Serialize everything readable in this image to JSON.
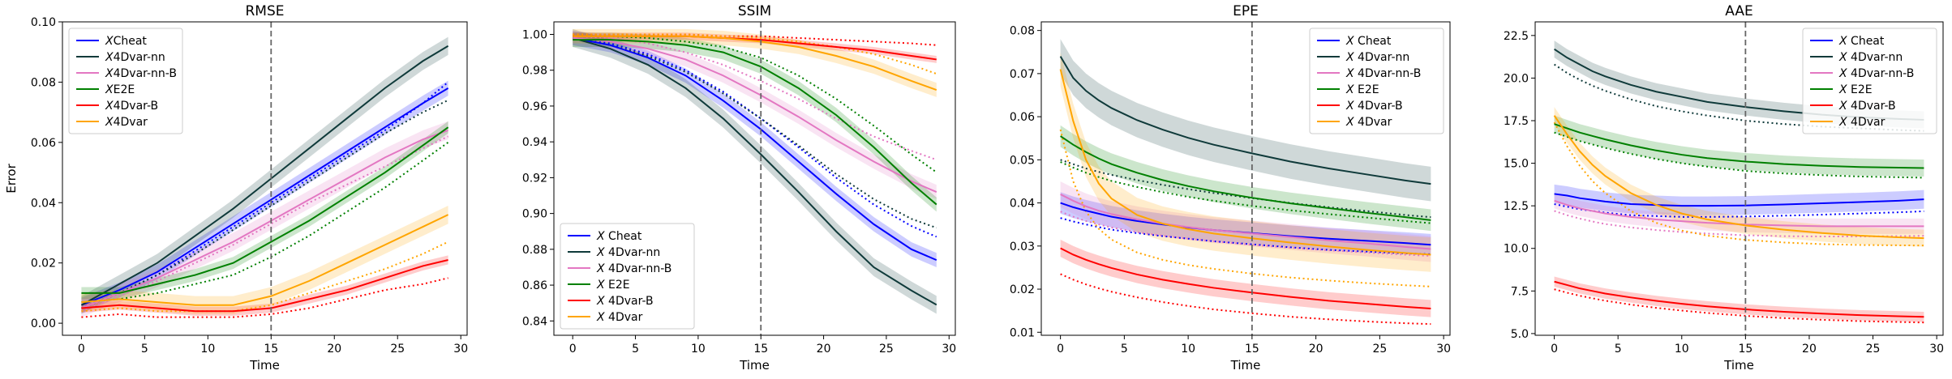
{
  "colors": {
    "cheat": "#0000ff",
    "nn": "#0f3a3a",
    "nnb": "#e377c2",
    "e2e": "#008000",
    "b": "#ff0000",
    "fourdvar": "#ffa500"
  },
  "chart_data": [
    {
      "type": "line",
      "title": "RMSE",
      "xlabel": "Time",
      "ylabel": "Error",
      "xlim": [
        -1.5,
        30.5
      ],
      "ylim": [
        -0.004,
        0.1
      ],
      "xticks": [
        0,
        5,
        10,
        15,
        20,
        25,
        30
      ],
      "yticks": [
        0.0,
        0.02,
        0.04,
        0.06,
        0.08,
        0.1
      ],
      "ytick_labels": [
        "0.00",
        "0.02",
        "0.04",
        "0.06",
        "0.08",
        "0.10"
      ],
      "vline": 15,
      "legend_loc": "upper-left",
      "x": [
        0,
        3,
        6,
        9,
        12,
        15,
        18,
        21,
        24,
        27,
        29
      ],
      "series": [
        {
          "name": "XCheat",
          "color_key": "cheat",
          "values": [
            0.006,
            0.011,
            0.017,
            0.025,
            0.033,
            0.041,
            0.049,
            0.057,
            0.065,
            0.073,
            0.078
          ],
          "band": 0.0025,
          "dotted": [
            0.005,
            0.01,
            0.016,
            0.024,
            0.032,
            0.04,
            0.048,
            0.056,
            0.064,
            0.073,
            0.08
          ]
        },
        {
          "name": "X4Dvar-nn",
          "color_key": "nn",
          "values": [
            0.006,
            0.013,
            0.02,
            0.029,
            0.038,
            0.048,
            0.058,
            0.068,
            0.078,
            0.087,
            0.092
          ],
          "band": 0.003,
          "dotted": [
            0.005,
            0.01,
            0.016,
            0.023,
            0.031,
            0.039,
            0.047,
            0.055,
            0.063,
            0.07,
            0.074
          ]
        },
        {
          "name": "X4Dvar-nn-B",
          "color_key": "nnb",
          "values": [
            0.005,
            0.01,
            0.015,
            0.021,
            0.027,
            0.034,
            0.041,
            0.048,
            0.055,
            0.061,
            0.064
          ],
          "band": 0.003,
          "dotted": [
            0.004,
            0.009,
            0.014,
            0.02,
            0.026,
            0.033,
            0.04,
            0.046,
            0.052,
            0.058,
            0.062
          ]
        },
        {
          "name": "XE2E",
          "color_key": "e2e",
          "values": [
            0.01,
            0.01,
            0.013,
            0.016,
            0.02,
            0.027,
            0.034,
            0.042,
            0.05,
            0.059,
            0.065
          ],
          "band": 0.002,
          "dotted": [
            0.007,
            0.008,
            0.01,
            0.013,
            0.016,
            0.022,
            0.029,
            0.037,
            0.045,
            0.054,
            0.06
          ]
        },
        {
          "name": "X4Dvar-B",
          "color_key": "b",
          "values": [
            0.005,
            0.006,
            0.005,
            0.004,
            0.004,
            0.005,
            0.008,
            0.011,
            0.015,
            0.019,
            0.021
          ],
          "band": 0.0015,
          "dotted": [
            0.002,
            0.003,
            0.002,
            0.002,
            0.002,
            0.003,
            0.005,
            0.008,
            0.011,
            0.013,
            0.015
          ]
        },
        {
          "name": "X4Dvar",
          "color_key": "fourdvar",
          "values": [
            0.007,
            0.008,
            0.007,
            0.006,
            0.006,
            0.009,
            0.014,
            0.02,
            0.026,
            0.032,
            0.036
          ],
          "band": 0.003,
          "dotted": [
            0.004,
            0.005,
            0.004,
            0.004,
            0.004,
            0.006,
            0.01,
            0.014,
            0.018,
            0.023,
            0.027
          ]
        }
      ]
    },
    {
      "type": "line",
      "title": "SSIM",
      "xlabel": "Time",
      "ylabel": "",
      "xlim": [
        -1.5,
        30.5
      ],
      "ylim": [
        0.832,
        1.007
      ],
      "xticks": [
        0,
        5,
        10,
        15,
        20,
        25,
        30
      ],
      "yticks": [
        0.84,
        0.86,
        0.88,
        0.9,
        0.92,
        0.94,
        0.96,
        0.98,
        1.0
      ],
      "ytick_labels": [
        "0.84",
        "0.86",
        "0.88",
        "0.90",
        "0.92",
        "0.94",
        "0.96",
        "0.98",
        "1.00"
      ],
      "vline": 15,
      "legend_loc": "lower-left",
      "x": [
        0,
        3,
        6,
        9,
        12,
        15,
        18,
        21,
        24,
        27,
        29
      ],
      "series": [
        {
          "name": "X Cheat",
          "color_key": "cheat",
          "values": [
            0.998,
            0.994,
            0.987,
            0.977,
            0.963,
            0.947,
            0.929,
            0.911,
            0.894,
            0.88,
            0.874
          ],
          "band": 0.004,
          "dotted": [
            0.998,
            0.995,
            0.989,
            0.98,
            0.968,
            0.953,
            0.937,
            0.92,
            0.905,
            0.893,
            0.887
          ]
        },
        {
          "name": "X 4Dvar-nn",
          "color_key": "nn",
          "values": [
            0.998,
            0.992,
            0.983,
            0.97,
            0.953,
            0.933,
            0.912,
            0.89,
            0.87,
            0.857,
            0.849
          ],
          "band": 0.005,
          "dotted": [
            0.998,
            0.994,
            0.988,
            0.979,
            0.967,
            0.953,
            0.938,
            0.922,
            0.908,
            0.897,
            0.892
          ]
        },
        {
          "name": "X 4Dvar-nn-B",
          "color_key": "nnb",
          "values": [
            0.998,
            0.996,
            0.992,
            0.986,
            0.977,
            0.966,
            0.954,
            0.941,
            0.929,
            0.918,
            0.912
          ],
          "band": 0.004,
          "dotted": [
            0.999,
            0.998,
            0.995,
            0.99,
            0.983,
            0.974,
            0.964,
            0.953,
            0.943,
            0.935,
            0.93
          ]
        },
        {
          "name": "X E2E",
          "color_key": "e2e",
          "values": [
            0.997,
            0.997,
            0.996,
            0.994,
            0.99,
            0.982,
            0.97,
            0.955,
            0.937,
            0.917,
            0.905
          ],
          "band": 0.004,
          "dotted": [
            0.999,
            0.999,
            0.998,
            0.996,
            0.993,
            0.987,
            0.977,
            0.964,
            0.949,
            0.933,
            0.923
          ]
        },
        {
          "name": "X 4Dvar-B",
          "color_key": "b",
          "values": [
            0.999,
            0.999,
            0.999,
            0.999,
            0.998,
            0.997,
            0.995,
            0.993,
            0.991,
            0.988,
            0.986
          ],
          "band": 0.002,
          "dotted": [
            1.0,
            1.0,
            1.0,
            1.0,
            0.999,
            0.999,
            0.998,
            0.997,
            0.996,
            0.995,
            0.994
          ]
        },
        {
          "name": "X 4Dvar",
          "color_key": "fourdvar",
          "values": [
            0.999,
            0.999,
            0.999,
            0.999,
            0.998,
            0.996,
            0.993,
            0.988,
            0.982,
            0.974,
            0.969
          ],
          "band": 0.004,
          "dotted": [
            1.0,
            1.0,
            1.0,
            1.0,
            0.999,
            0.998,
            0.996,
            0.993,
            0.989,
            0.983,
            0.978
          ]
        }
      ]
    },
    {
      "type": "line",
      "title": "EPE",
      "xlabel": "Time",
      "ylabel": "",
      "xlim": [
        -1.5,
        30.5
      ],
      "ylim": [
        0.0093,
        0.082
      ],
      "xticks": [
        0,
        5,
        10,
        15,
        20,
        25,
        30
      ],
      "yticks": [
        0.01,
        0.02,
        0.03,
        0.04,
        0.05,
        0.06,
        0.07,
        0.08
      ],
      "ytick_labels": [
        "0.01",
        "0.02",
        "0.03",
        "0.04",
        "0.05",
        "0.06",
        "0.07",
        "0.08"
      ],
      "vline": 15,
      "legend_loc": "upper-right",
      "x": [
        0,
        1,
        2,
        3,
        4,
        6,
        8,
        10,
        12,
        15,
        18,
        21,
        24,
        27,
        29
      ],
      "series": [
        {
          "name": "X Cheat",
          "color_key": "cheat",
          "values": [
            0.04,
            0.039,
            0.0382,
            0.0375,
            0.0368,
            0.0358,
            0.035,
            0.0343,
            0.0337,
            0.033,
            0.0323,
            0.0317,
            0.0312,
            0.0307,
            0.0303
          ],
          "band": 0.0025,
          "dotted": [
            0.0365,
            0.0357,
            0.035,
            0.0344,
            0.0338,
            0.033,
            0.0323,
            0.0317,
            0.0311,
            0.0304,
            0.0297,
            0.0291,
            0.0287,
            0.0283,
            0.0281
          ]
        },
        {
          "name": "X 4Dvar-nn",
          "color_key": "nn",
          "values": [
            0.074,
            0.069,
            0.066,
            0.0638,
            0.062,
            0.0592,
            0.057,
            0.0551,
            0.0535,
            0.0515,
            0.0496,
            0.048,
            0.0466,
            0.0452,
            0.0444
          ],
          "band": 0.004,
          "dotted": [
            0.05,
            0.049,
            0.048,
            0.0472,
            0.0465,
            0.0453,
            0.0442,
            0.0432,
            0.0423,
            0.0411,
            0.04,
            0.039,
            0.0381,
            0.0372,
            0.0367
          ]
        },
        {
          "name": "X 4Dvar-nn-B",
          "color_key": "nnb",
          "values": [
            0.042,
            0.0405,
            0.0392,
            0.0382,
            0.0374,
            0.0362,
            0.0352,
            0.0344,
            0.0337,
            0.0329,
            0.0321,
            0.0313,
            0.0306,
            0.0298,
            0.0293
          ],
          "band": 0.003,
          "dotted": [
            0.038,
            0.0368,
            0.0358,
            0.035,
            0.0343,
            0.0332,
            0.0324,
            0.0317,
            0.0311,
            0.0303,
            0.0296,
            0.029,
            0.0285,
            0.028,
            0.0277
          ]
        },
        {
          "name": "X E2E",
          "color_key": "e2e",
          "values": [
            0.0555,
            0.0535,
            0.0518,
            0.0503,
            0.049,
            0.047,
            0.0453,
            0.0439,
            0.0427,
            0.0412,
            0.0399,
            0.0388,
            0.0377,
            0.0367,
            0.036
          ],
          "band": 0.0025,
          "dotted": [
            0.0495,
            0.0482,
            0.047,
            0.046,
            0.0451,
            0.0437,
            0.0425,
            0.0414,
            0.0405,
            0.0393,
            0.0383,
            0.0374,
            0.0366,
            0.0358,
            0.0353
          ]
        },
        {
          "name": "X 4Dvar-B",
          "color_key": "b",
          "values": [
            0.0295,
            0.028,
            0.0268,
            0.0258,
            0.0249,
            0.0234,
            0.0222,
            0.0212,
            0.0203,
            0.0192,
            0.0182,
            0.0173,
            0.0166,
            0.0159,
            0.0155
          ],
          "band": 0.002,
          "dotted": [
            0.0235,
            0.0222,
            0.0211,
            0.0202,
            0.0194,
            0.0181,
            0.017,
            0.0161,
            0.0153,
            0.0144,
            0.0136,
            0.013,
            0.0125,
            0.0121,
            0.0119
          ]
        },
        {
          "name": "X 4Dvar",
          "color_key": "fourdvar",
          "values": [
            0.071,
            0.059,
            0.05,
            0.0445,
            0.041,
            0.0372,
            0.0352,
            0.0339,
            0.0329,
            0.0318,
            0.0308,
            0.0299,
            0.0291,
            0.0284,
            0.028
          ],
          "band": 0.004,
          "dotted": [
            0.057,
            0.045,
            0.038,
            0.034,
            0.0315,
            0.0285,
            0.0268,
            0.0256,
            0.0247,
            0.0236,
            0.0227,
            0.022,
            0.0214,
            0.0209,
            0.0206
          ]
        }
      ]
    },
    {
      "type": "line",
      "title": "AAE",
      "xlabel": "Time",
      "ylabel": "",
      "xlim": [
        -1.5,
        30.5
      ],
      "ylim": [
        4.9,
        23.3
      ],
      "xticks": [
        0,
        5,
        10,
        15,
        20,
        25,
        30
      ],
      "yticks": [
        5.0,
        7.5,
        10.0,
        12.5,
        15.0,
        17.5,
        20.0,
        22.5
      ],
      "ytick_labels": [
        "5.0",
        "7.5",
        "10.0",
        "12.5",
        "15.0",
        "17.5",
        "20.0",
        "22.5"
      ],
      "vline": 15,
      "legend_loc": "upper-right",
      "x": [
        0,
        1,
        2,
        3,
        4,
        6,
        8,
        10,
        12,
        15,
        18,
        21,
        24,
        27,
        29
      ],
      "series": [
        {
          "name": "X Cheat",
          "color_key": "cheat",
          "values": [
            13.2,
            13.1,
            12.95,
            12.85,
            12.75,
            12.6,
            12.55,
            12.5,
            12.5,
            12.52,
            12.58,
            12.65,
            12.72,
            12.8,
            12.88
          ],
          "band": 0.55,
          "dotted": [
            12.6,
            12.45,
            12.3,
            12.2,
            12.1,
            11.95,
            11.9,
            11.85,
            11.85,
            11.87,
            11.92,
            11.98,
            12.05,
            12.12,
            12.18
          ]
        },
        {
          "name": "X 4Dvar-nn",
          "color_key": "nn",
          "values": [
            21.7,
            21.2,
            20.8,
            20.4,
            20.1,
            19.6,
            19.2,
            18.9,
            18.6,
            18.3,
            18.05,
            17.85,
            17.7,
            17.6,
            17.55
          ],
          "band": 0.5,
          "dotted": [
            20.8,
            20.3,
            19.9,
            19.55,
            19.25,
            18.75,
            18.35,
            18.05,
            17.8,
            17.5,
            17.3,
            17.15,
            17.05,
            16.95,
            16.9
          ]
        },
        {
          "name": "X 4Dvar-nn-B",
          "color_key": "nnb",
          "values": [
            12.8,
            12.55,
            12.35,
            12.2,
            12.05,
            11.85,
            11.7,
            11.6,
            11.5,
            11.4,
            11.35,
            11.3,
            11.3,
            11.3,
            11.3
          ],
          "band": 0.45,
          "dotted": [
            12.2,
            11.95,
            11.75,
            11.58,
            11.43,
            11.23,
            11.08,
            10.96,
            10.87,
            10.77,
            10.72,
            10.7,
            10.7,
            10.72,
            10.74
          ]
        },
        {
          "name": "X E2E",
          "color_key": "e2e",
          "values": [
            17.3,
            17.05,
            16.8,
            16.6,
            16.4,
            16.05,
            15.75,
            15.5,
            15.3,
            15.1,
            14.95,
            14.85,
            14.78,
            14.74,
            14.72
          ],
          "band": 0.5,
          "dotted": [
            16.8,
            16.55,
            16.3,
            16.1,
            15.9,
            15.55,
            15.25,
            15.0,
            14.8,
            14.55,
            14.4,
            14.3,
            14.22,
            14.18,
            14.15
          ]
        },
        {
          "name": "X 4Dvar-B",
          "color_key": "b",
          "values": [
            8.05,
            7.85,
            7.65,
            7.5,
            7.35,
            7.12,
            6.92,
            6.75,
            6.6,
            6.42,
            6.28,
            6.17,
            6.08,
            6.02,
            5.98
          ],
          "band": 0.3,
          "dotted": [
            7.6,
            7.4,
            7.22,
            7.07,
            6.93,
            6.7,
            6.51,
            6.35,
            6.21,
            6.04,
            5.91,
            5.81,
            5.73,
            5.68,
            5.65
          ]
        },
        {
          "name": "X 4Dvar",
          "color_key": "fourdvar",
          "values": [
            17.8,
            16.7,
            15.7,
            14.9,
            14.25,
            13.25,
            12.55,
            12.05,
            11.7,
            11.35,
            11.1,
            10.9,
            10.75,
            10.65,
            10.6
          ],
          "band": 0.5,
          "dotted": [
            17.4,
            16.0,
            14.85,
            13.95,
            13.25,
            12.2,
            11.5,
            11.05,
            10.75,
            10.5,
            10.35,
            10.25,
            10.2,
            10.18,
            10.17
          ]
        }
      ]
    }
  ]
}
